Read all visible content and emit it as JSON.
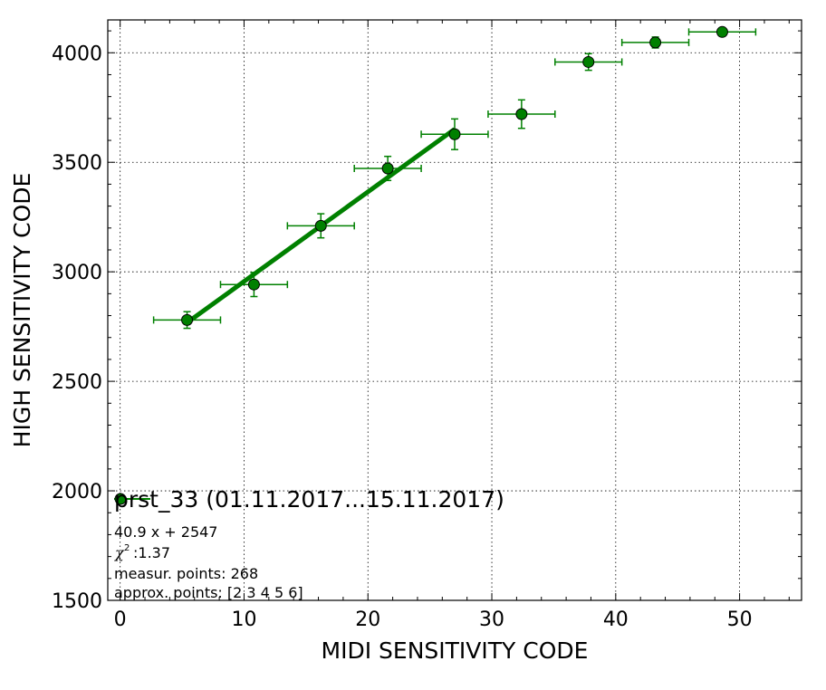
{
  "chart_data": {
    "type": "scatter",
    "xlabel": "MIDI SENSITIVITY CODE",
    "ylabel": "HIGH SENSITIVITY CODE",
    "xlim": [
      -1,
      55
    ],
    "ylim": [
      1500,
      4150
    ],
    "xticks": [
      0,
      10,
      20,
      30,
      40,
      50
    ],
    "yticks": [
      1500,
      2000,
      2500,
      3000,
      3500,
      4000
    ],
    "xtick_labels": [
      "0",
      "10",
      "20",
      "30",
      "40",
      "50"
    ],
    "ytick_labels": [
      "1500",
      "2000",
      "2500",
      "3000",
      "3500",
      "4000"
    ],
    "grid": true,
    "legend_position": "lower-left",
    "marker_color": "#008000",
    "series": [
      {
        "name": "prst_33 (01.11.2017...15.11.2017)",
        "points": [
          {
            "x": 5.4,
            "y": 2780,
            "xerr": 2.7,
            "yerr": 38
          },
          {
            "x": 10.8,
            "y": 2942,
            "xerr": 2.7,
            "yerr": 55
          },
          {
            "x": 16.2,
            "y": 3210,
            "xerr": 2.7,
            "yerr": 55
          },
          {
            "x": 21.6,
            "y": 3472,
            "xerr": 2.7,
            "yerr": 55
          },
          {
            "x": 27.0,
            "y": 3628,
            "xerr": 2.7,
            "yerr": 70
          },
          {
            "x": 32.4,
            "y": 3720,
            "xerr": 2.7,
            "yerr": 65
          },
          {
            "x": 37.8,
            "y": 3958,
            "xerr": 2.7,
            "yerr": 38
          },
          {
            "x": 43.2,
            "y": 4047,
            "xerr": 2.7,
            "yerr": 25
          },
          {
            "x": 48.6,
            "y": 4095,
            "xerr": 2.7,
            "yerr": 10
          }
        ]
      }
    ],
    "fit": {
      "slope": 40.9,
      "intercept": 2547,
      "x_from": 5.4,
      "x_to": 27.0,
      "color": "#008000"
    },
    "legend_label": "prst_33 (01.11.2017...15.11.2017)",
    "annotations": [
      "40.9 x + 2547",
      ":1.37",
      "measur. points: 268",
      "approx. points: [2 3 4 5 6]"
    ],
    "chi_symbol": "χ",
    "chi_sup": "2"
  }
}
